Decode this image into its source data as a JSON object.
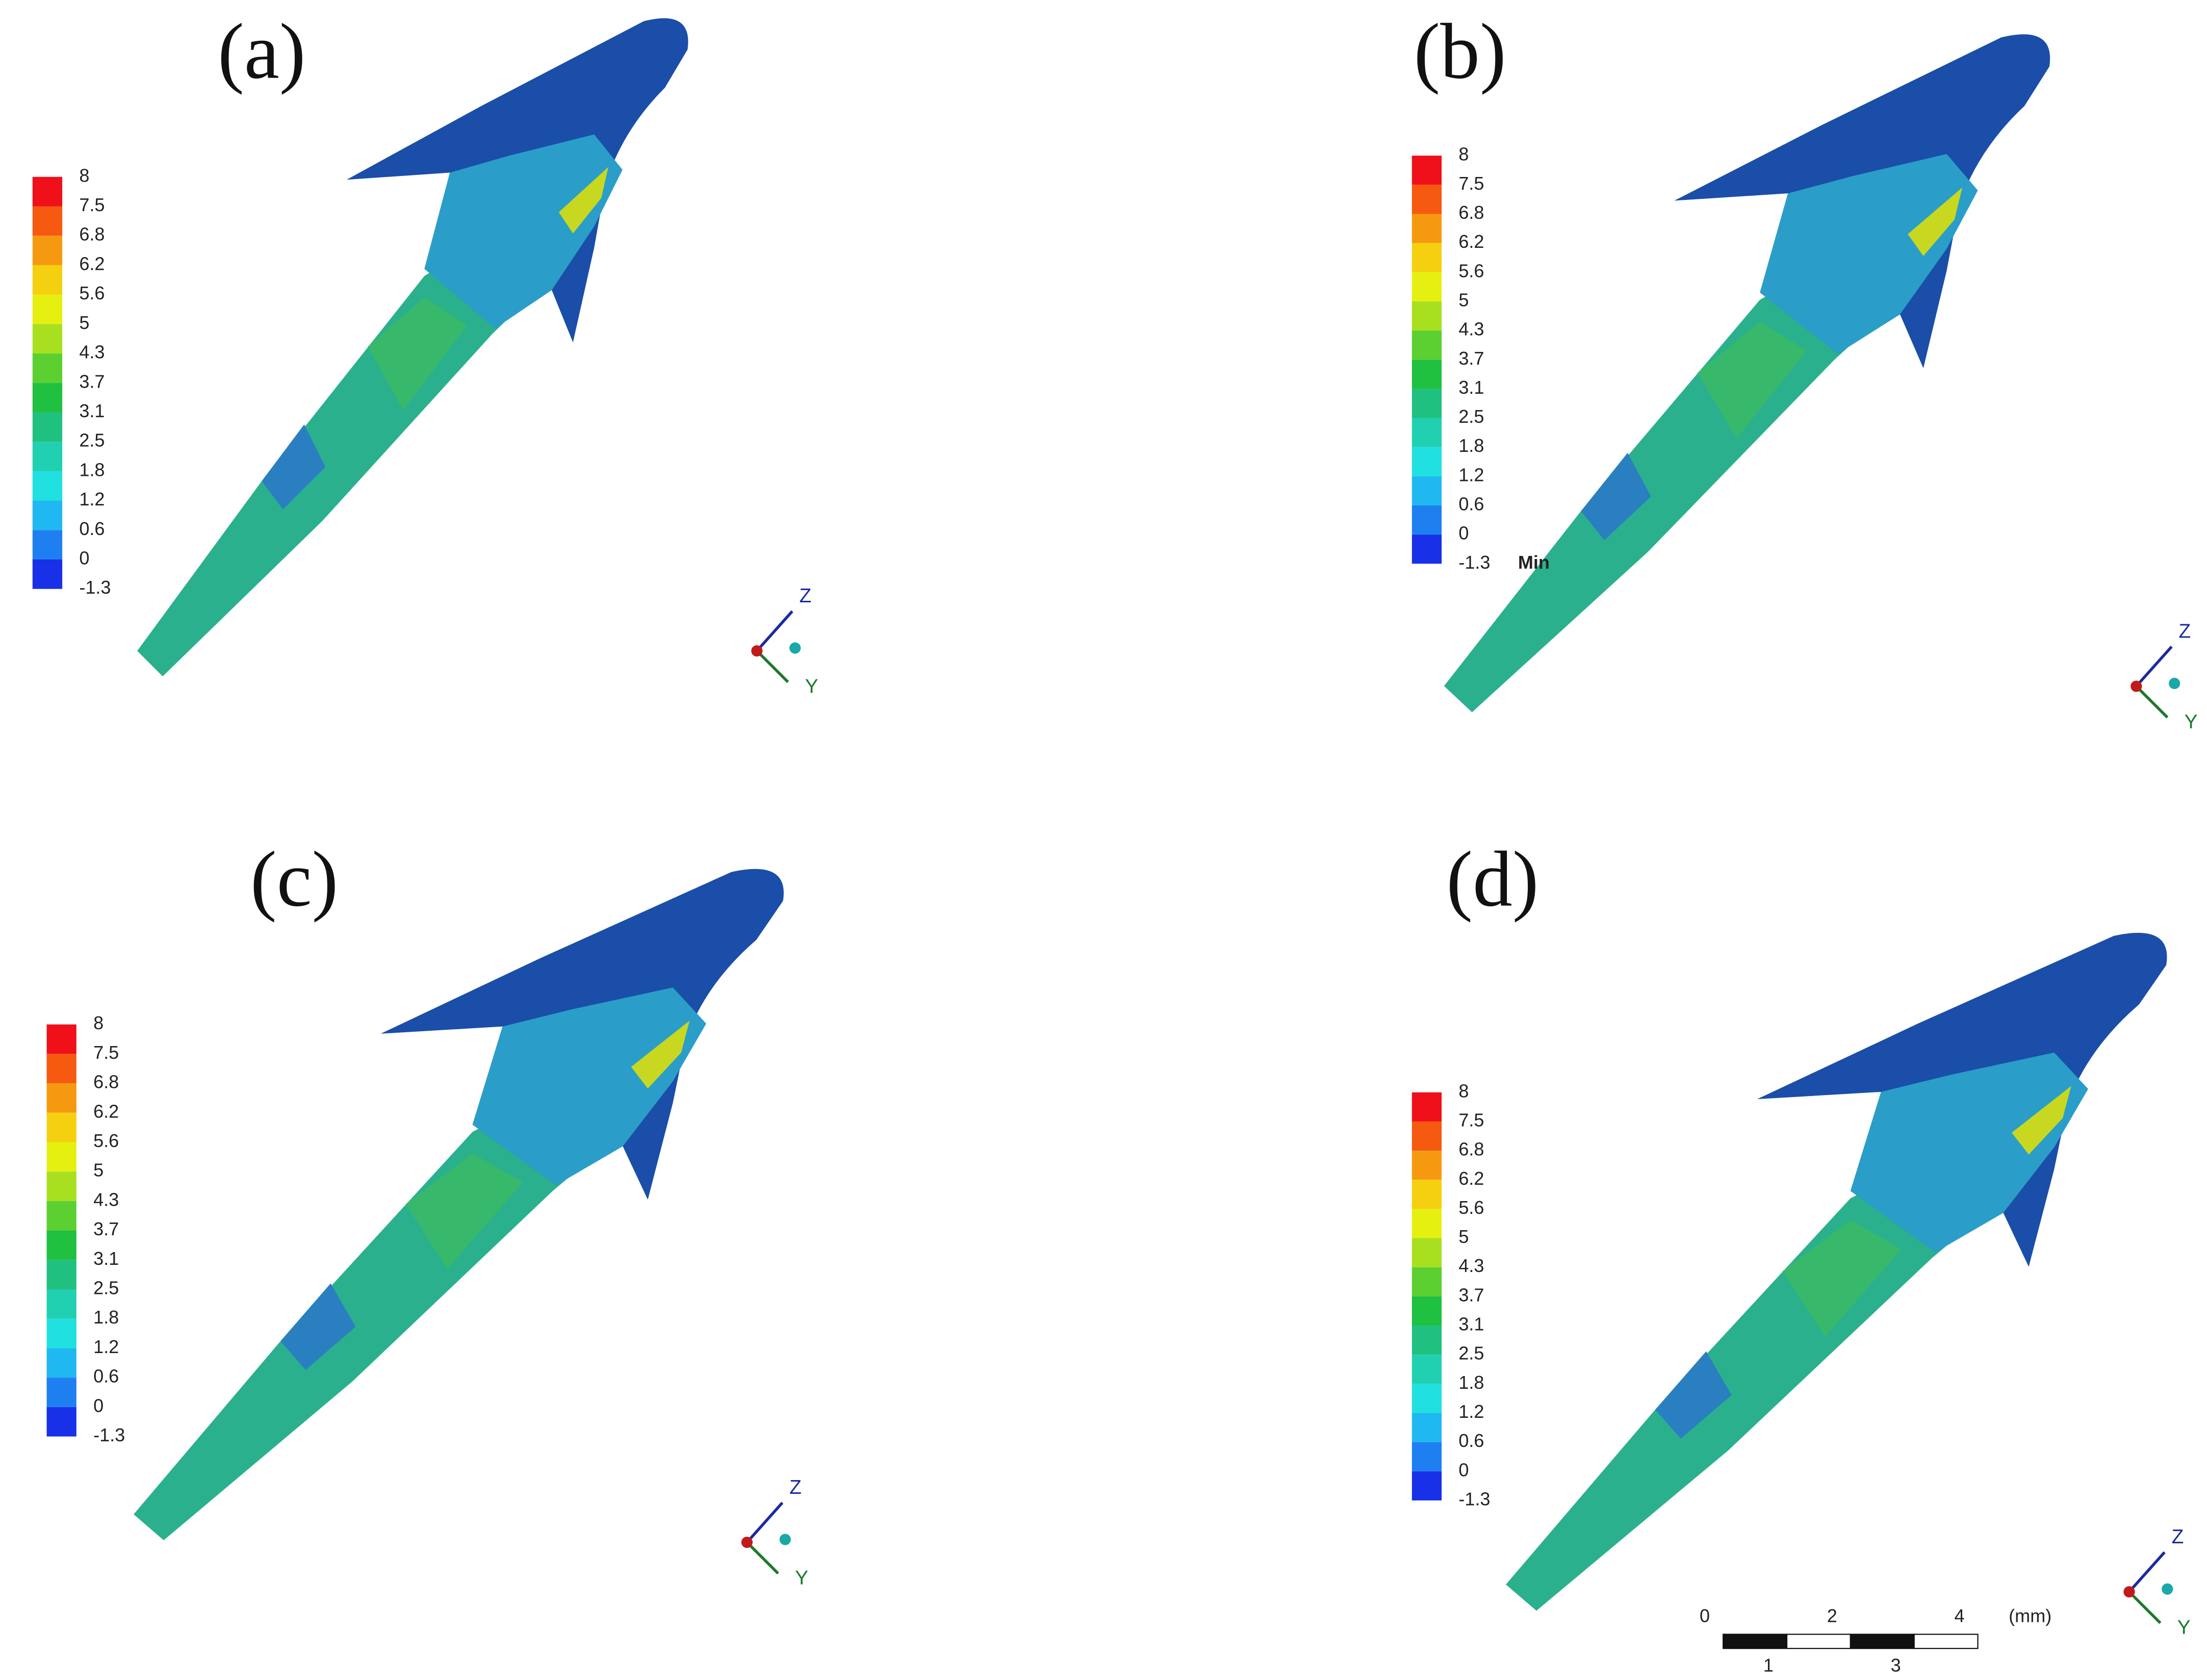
{
  "panels": [
    {
      "label": "(a)",
      "legend": [
        "8",
        "7.5",
        "6.8",
        "6.2",
        "5.6",
        "5",
        "4.3",
        "3.7",
        "3.1",
        "2.5",
        "1.8",
        "1.2",
        "0.6",
        "0",
        "-1.3"
      ],
      "axes": {
        "z": "Z",
        "y": "Y"
      }
    },
    {
      "label": "(b)",
      "legend": [
        "8",
        "7.5",
        "6.8",
        "6.2",
        "5.6",
        "5",
        "4.3",
        "3.7",
        "3.1",
        "2.5",
        "1.8",
        "1.2",
        "0.6",
        "0",
        "-1.3"
      ],
      "min_label": "Min",
      "axes": {
        "z": "Z",
        "y": "Y"
      }
    },
    {
      "label": "(c)",
      "legend": [
        "8",
        "7.5",
        "6.8",
        "6.2",
        "5.6",
        "5",
        "4.3",
        "3.7",
        "3.1",
        "2.5",
        "1.8",
        "1.2",
        "0.6",
        "0",
        "-1.3"
      ],
      "axes": {
        "z": "Z",
        "y": "Y"
      }
    },
    {
      "label": "(d)",
      "legend": [
        "8",
        "7.5",
        "6.8",
        "6.2",
        "5.6",
        "5",
        "4.3",
        "3.7",
        "3.1",
        "2.5",
        "1.8",
        "1.2",
        "0.6",
        "0",
        "-1.3"
      ],
      "axes": {
        "z": "Z",
        "y": "Y"
      }
    }
  ],
  "scale_bar": {
    "top_labels": [
      "0",
      "2",
      "4"
    ],
    "unit": "(mm)",
    "bottom_labels": [
      "1",
      "3"
    ]
  }
}
